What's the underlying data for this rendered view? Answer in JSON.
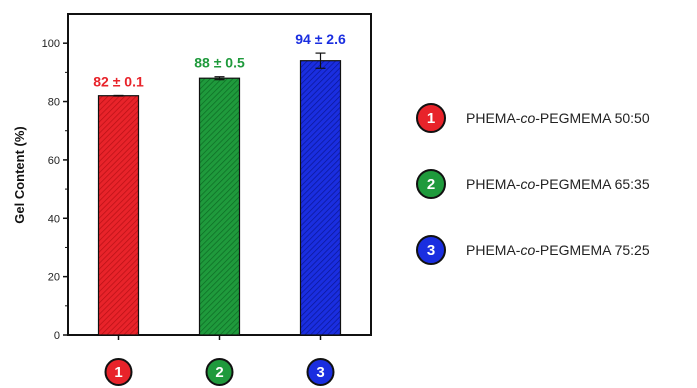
{
  "chart_data": {
    "type": "bar",
    "ylabel": "Gel Content (%)",
    "xlabel": "",
    "ylim": [
      0,
      110
    ],
    "yticks": [
      0,
      20,
      40,
      60,
      80,
      100
    ],
    "grid": false,
    "legend_position": "right",
    "categories": [
      "1",
      "2",
      "3"
    ],
    "values": [
      82,
      88,
      94
    ],
    "errors": [
      0.1,
      0.5,
      2.6
    ],
    "data_labels": [
      "82 ± 0.1",
      "88 ± 0.5",
      "94 ± 2.6"
    ],
    "colors": [
      "#e8232a",
      "#1f9a3c",
      "#1a2ee0"
    ],
    "legend": [
      {
        "badge": "1",
        "prefix": "PHEMA-",
        "italic": "co",
        "suffix": "-PEGMEMA 50:50"
      },
      {
        "badge": "2",
        "prefix": "PHEMA-",
        "italic": "co",
        "suffix": "-PEGMEMA 65:35"
      },
      {
        "badge": "3",
        "prefix": "PHEMA-",
        "italic": "co",
        "suffix": "-PEGMEMA 75:25"
      }
    ]
  }
}
